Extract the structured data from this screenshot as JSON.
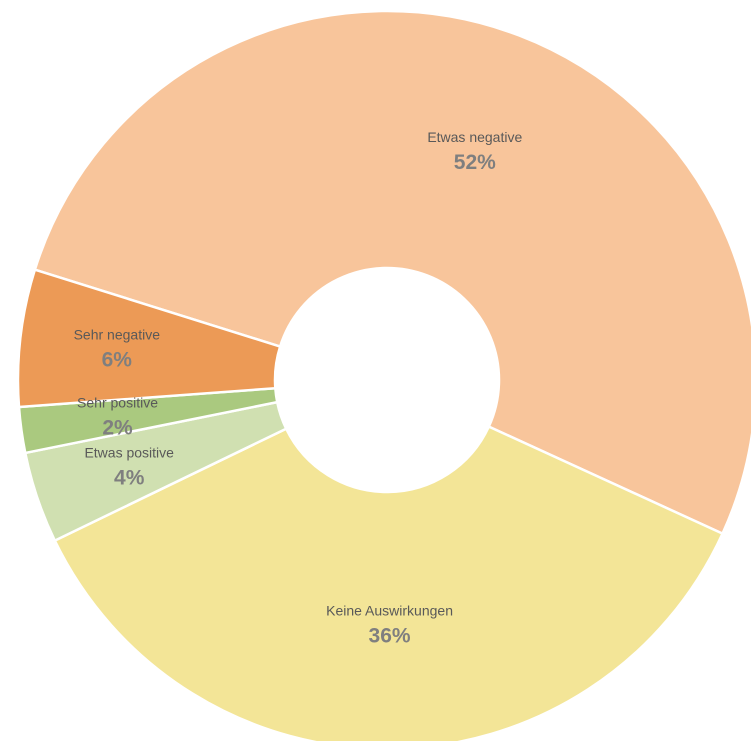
{
  "chart_data": {
    "type": "donut",
    "categories": [
      "Etwas negative",
      "Keine Auswirkungen",
      "Etwas positive",
      "Sehr positive",
      "Sehr negative"
    ],
    "values": [
      52,
      36,
      4,
      2,
      6
    ],
    "value_labels": [
      "52%",
      "36%",
      "4%",
      "2%",
      "6%"
    ],
    "colors": [
      "#f8c59b",
      "#f3e597",
      "#d0e0b1",
      "#aac97f",
      "#ec9a56"
    ]
  }
}
